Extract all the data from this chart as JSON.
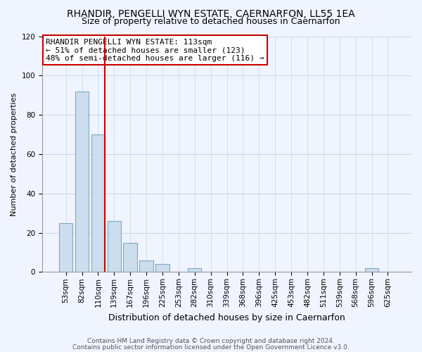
{
  "title1": "RHANDIR, PENGELLI WYN ESTATE, CAERNARFON, LL55 1EA",
  "title2": "Size of property relative to detached houses in Caernarfon",
  "xlabel": "Distribution of detached houses by size in Caernarfon",
  "ylabel": "Number of detached properties",
  "categories": [
    "53sqm",
    "82sqm",
    "110sqm",
    "139sqm",
    "167sqm",
    "196sqm",
    "225sqm",
    "253sqm",
    "282sqm",
    "310sqm",
    "339sqm",
    "368sqm",
    "396sqm",
    "425sqm",
    "453sqm",
    "482sqm",
    "511sqm",
    "539sqm",
    "568sqm",
    "596sqm",
    "625sqm"
  ],
  "values": [
    25,
    92,
    70,
    26,
    15,
    6,
    4,
    0,
    2,
    0,
    0,
    0,
    0,
    0,
    0,
    0,
    0,
    0,
    0,
    2,
    0
  ],
  "bar_color": "#ccdded",
  "bar_edge_color": "#7aaac8",
  "vline_color": "#cc0000",
  "annotation_text": "RHANDIR PENGELLI WYN ESTATE: 113sqm\n← 51% of detached houses are smaller (123)\n48% of semi-detached houses are larger (116) →",
  "annotation_box_color": "white",
  "annotation_box_edge_color": "#cc0000",
  "ylim": [
    0,
    120
  ],
  "yticks": [
    0,
    20,
    40,
    60,
    80,
    100,
    120
  ],
  "footer1": "Contains HM Land Registry data © Crown copyright and database right 2024.",
  "footer2": "Contains public sector information licensed under the Open Government Licence v3.0.",
  "bg_color": "#f0f4ff",
  "grid_color": "#c8d4e8",
  "title1_fontsize": 10,
  "title2_fontsize": 9,
  "xlabel_fontsize": 9,
  "ylabel_fontsize": 8,
  "tick_fontsize": 7.5,
  "annot_fontsize": 8,
  "footer_fontsize": 6.5
}
